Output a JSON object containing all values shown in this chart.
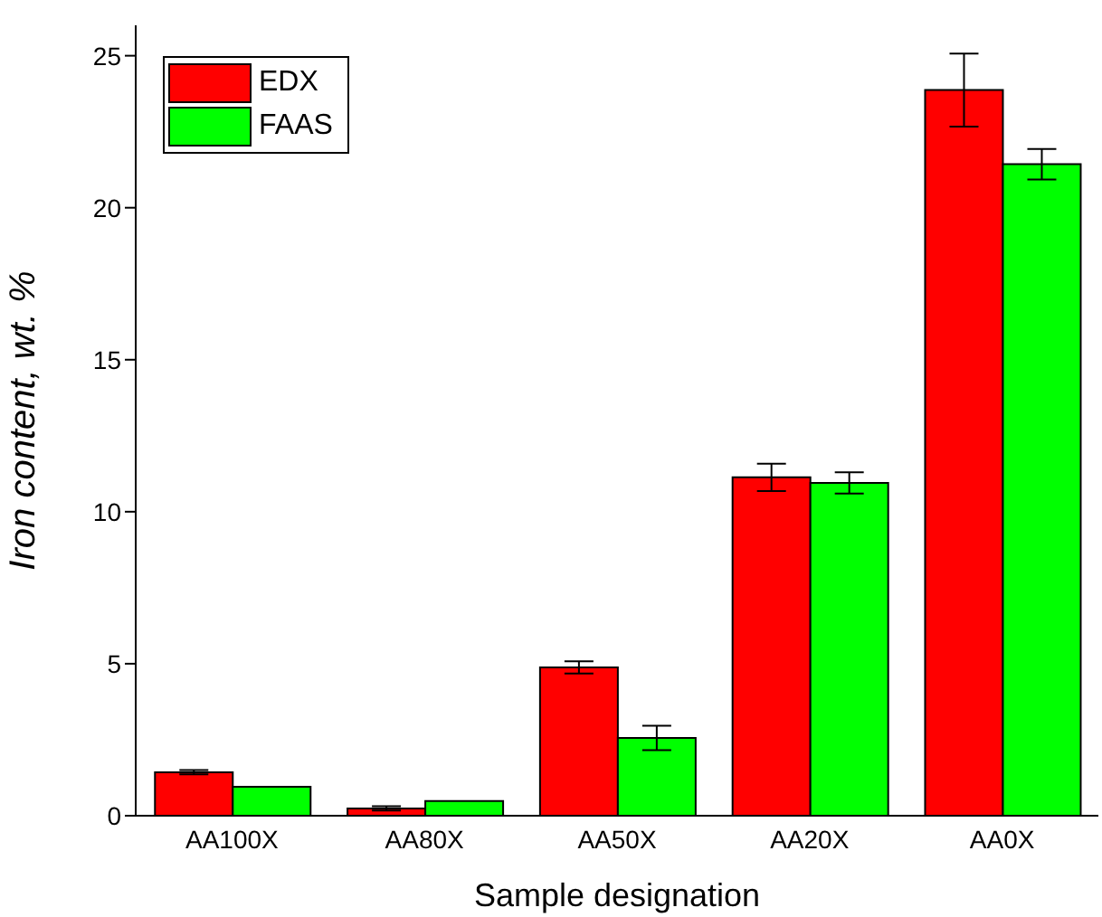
{
  "chart_data": {
    "type": "bar",
    "xlabel": "Sample designation",
    "ylabel": "Iron content, wt. %",
    "categories": [
      "AA100X",
      "AA80X",
      "AA50X",
      "AA20X",
      "AA0X"
    ],
    "series": [
      {
        "name": "EDX",
        "color": "#ff0000",
        "values": [
          1.43,
          0.24,
          4.88,
          11.13,
          23.87
        ],
        "errors": [
          0.07,
          0.07,
          0.2,
          0.45,
          1.2
        ]
      },
      {
        "name": "FAAS",
        "color": "#00ff00",
        "values": [
          0.95,
          0.48,
          2.56,
          10.95,
          21.43
        ],
        "errors": [
          null,
          null,
          0.4,
          0.35,
          0.5
        ]
      }
    ],
    "ylim": [
      0,
      26
    ],
    "yticks": [
      0,
      5,
      10,
      15,
      20,
      25
    ],
    "grid": false,
    "legend": "top left"
  }
}
